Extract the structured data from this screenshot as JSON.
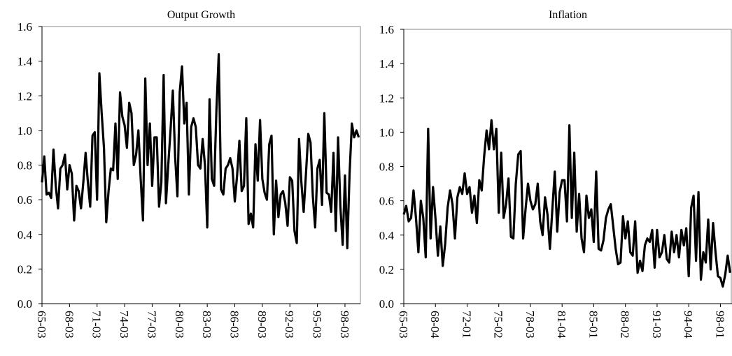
{
  "chart_data": [
    {
      "type": "line",
      "title": "Output Growth",
      "color": "#000000",
      "categories": [
        "65-03",
        null,
        null,
        null,
        null,
        null,
        null,
        null,
        null,
        null,
        null,
        null,
        "68-03",
        null,
        null,
        null,
        null,
        null,
        null,
        null,
        null,
        null,
        null,
        null,
        "71-03",
        null,
        null,
        null,
        null,
        null,
        null,
        null,
        null,
        null,
        null,
        null,
        "74-03",
        null,
        null,
        null,
        null,
        null,
        null,
        null,
        null,
        null,
        null,
        null,
        "77-03",
        null,
        null,
        null,
        null,
        null,
        null,
        null,
        null,
        null,
        null,
        null,
        "80-03",
        null,
        null,
        null,
        null,
        null,
        null,
        null,
        null,
        null,
        null,
        null,
        "83-03",
        null,
        null,
        null,
        null,
        null,
        null,
        null,
        null,
        null,
        null,
        null,
        "86-03",
        null,
        null,
        null,
        null,
        null,
        null,
        null,
        null,
        null,
        null,
        null,
        "89-03",
        null,
        null,
        null,
        null,
        null,
        null,
        null,
        null,
        null,
        null,
        null,
        "92-03",
        null,
        null,
        null,
        null,
        null,
        null,
        null,
        null,
        null,
        null,
        null,
        "95-03",
        null,
        null,
        null,
        null,
        null,
        null,
        null,
        null,
        null,
        null,
        null,
        "98-03",
        null,
        null,
        null,
        null,
        null,
        null
      ],
      "values": [
        0.7,
        0.85,
        0.63,
        0.64,
        0.61,
        0.89,
        0.68,
        0.55,
        0.78,
        0.8,
        0.86,
        0.66,
        0.8,
        0.75,
        0.48,
        0.68,
        0.65,
        0.55,
        0.7,
        0.87,
        0.7,
        0.56,
        0.97,
        0.99,
        0.6,
        1.33,
        1.1,
        0.9,
        0.47,
        0.65,
        0.78,
        0.77,
        1.04,
        0.72,
        1.22,
        1.08,
        1.03,
        0.9,
        1.16,
        1.1,
        0.8,
        0.86,
        1.0,
        0.72,
        0.48,
        1.3,
        0.8,
        1.04,
        0.68,
        0.96,
        0.96,
        0.56,
        0.7,
        1.32,
        0.58,
        0.8,
        1.0,
        1.23,
        0.85,
        0.62,
        1.22,
        1.37,
        1.04,
        1.16,
        0.63,
        1.02,
        1.07,
        1.02,
        0.8,
        0.78,
        0.95,
        0.8,
        0.44,
        1.18,
        0.72,
        0.68,
        1.12,
        1.44,
        0.66,
        0.63,
        0.78,
        0.8,
        0.84,
        0.78,
        0.59,
        0.74,
        0.94,
        0.65,
        0.68,
        1.07,
        0.46,
        0.52,
        0.44,
        0.92,
        0.71,
        1.06,
        0.72,
        0.64,
        0.6,
        0.92,
        0.97,
        0.4,
        0.71,
        0.5,
        0.63,
        0.65,
        0.58,
        0.45,
        0.73,
        0.71,
        0.42,
        0.35,
        0.95,
        0.7,
        0.53,
        0.75,
        0.98,
        0.93,
        0.62,
        0.44,
        0.78,
        0.83,
        0.57,
        1.1,
        0.64,
        0.63,
        0.53,
        0.87,
        0.42,
        0.96,
        0.56,
        0.34,
        0.74,
        0.32,
        0.75,
        1.04,
        0.96,
        1.0,
        0.96
      ],
      "ylim": [
        0,
        1.6
      ],
      "yticks": [
        {
          "value": 0,
          "label": "0.0"
        },
        0.2,
        0.4,
        0.6,
        0.8,
        {
          "value": 1,
          "label": "1.0"
        },
        1.2,
        1.4,
        1.6
      ]
    },
    {
      "type": "line",
      "title": "Inflation",
      "color": "#000000",
      "categories": [
        "65-03",
        null,
        null,
        null,
        null,
        null,
        null,
        null,
        null,
        null,
        null,
        null,
        null,
        "68-04",
        null,
        null,
        null,
        null,
        null,
        null,
        null,
        null,
        null,
        null,
        null,
        null,
        "72-01",
        null,
        null,
        null,
        null,
        null,
        null,
        null,
        null,
        null,
        null,
        null,
        null,
        "75-02",
        null,
        null,
        null,
        null,
        null,
        null,
        null,
        null,
        null,
        null,
        null,
        null,
        "78-03",
        null,
        null,
        null,
        null,
        null,
        null,
        null,
        null,
        null,
        null,
        null,
        null,
        "81-04",
        null,
        null,
        null,
        null,
        null,
        null,
        null,
        null,
        null,
        null,
        null,
        null,
        "85-01",
        null,
        null,
        null,
        null,
        null,
        null,
        null,
        null,
        null,
        null,
        null,
        null,
        "88-02",
        null,
        null,
        null,
        null,
        null,
        null,
        null,
        null,
        null,
        null,
        null,
        null,
        "91-03",
        null,
        null,
        null,
        null,
        null,
        null,
        null,
        null,
        null,
        null,
        null,
        null,
        "94-04",
        null,
        null,
        null,
        null,
        null,
        null,
        null,
        null,
        null,
        null,
        null,
        null,
        "98-01",
        null,
        null,
        null,
        null
      ],
      "values": [
        0.52,
        0.57,
        0.48,
        0.5,
        0.66,
        0.5,
        0.3,
        0.6,
        0.5,
        0.27,
        1.02,
        0.38,
        0.68,
        0.5,
        0.28,
        0.45,
        0.22,
        0.35,
        0.56,
        0.66,
        0.58,
        0.38,
        0.62,
        0.68,
        0.64,
        0.76,
        0.64,
        0.68,
        0.53,
        0.63,
        0.47,
        0.72,
        0.66,
        0.86,
        1.01,
        0.9,
        1.07,
        0.9,
        1.02,
        0.53,
        0.88,
        0.5,
        0.58,
        0.73,
        0.39,
        0.38,
        0.7,
        0.87,
        0.89,
        0.38,
        0.55,
        0.7,
        0.6,
        0.55,
        0.58,
        0.7,
        0.48,
        0.4,
        0.62,
        0.52,
        0.32,
        0.55,
        0.77,
        0.42,
        0.65,
        0.72,
        0.72,
        0.48,
        1.04,
        0.5,
        0.88,
        0.42,
        0.64,
        0.38,
        0.3,
        0.63,
        0.5,
        0.55,
        0.36,
        0.77,
        0.32,
        0.31,
        0.37,
        0.5,
        0.55,
        0.58,
        0.45,
        0.32,
        0.23,
        0.24,
        0.51,
        0.38,
        0.48,
        0.3,
        0.28,
        0.48,
        0.18,
        0.25,
        0.19,
        0.34,
        0.38,
        0.36,
        0.43,
        0.21,
        0.43,
        0.27,
        0.3,
        0.4,
        0.26,
        0.24,
        0.42,
        0.3,
        0.4,
        0.27,
        0.43,
        0.34,
        0.44,
        0.16,
        0.56,
        0.63,
        0.25,
        0.65,
        0.14,
        0.3,
        0.24,
        0.49,
        0.2,
        0.47,
        0.3,
        0.16,
        0.15,
        0.1,
        0.17,
        0.28,
        0.18
      ],
      "ylim": [
        0,
        1.6
      ],
      "yticks": [
        {
          "value": 0,
          "label": "0.0"
        },
        0.2,
        0.4,
        0.6,
        0.8,
        {
          "value": 1,
          "label": "1.0"
        },
        1.2,
        1.4,
        1.6
      ]
    }
  ]
}
